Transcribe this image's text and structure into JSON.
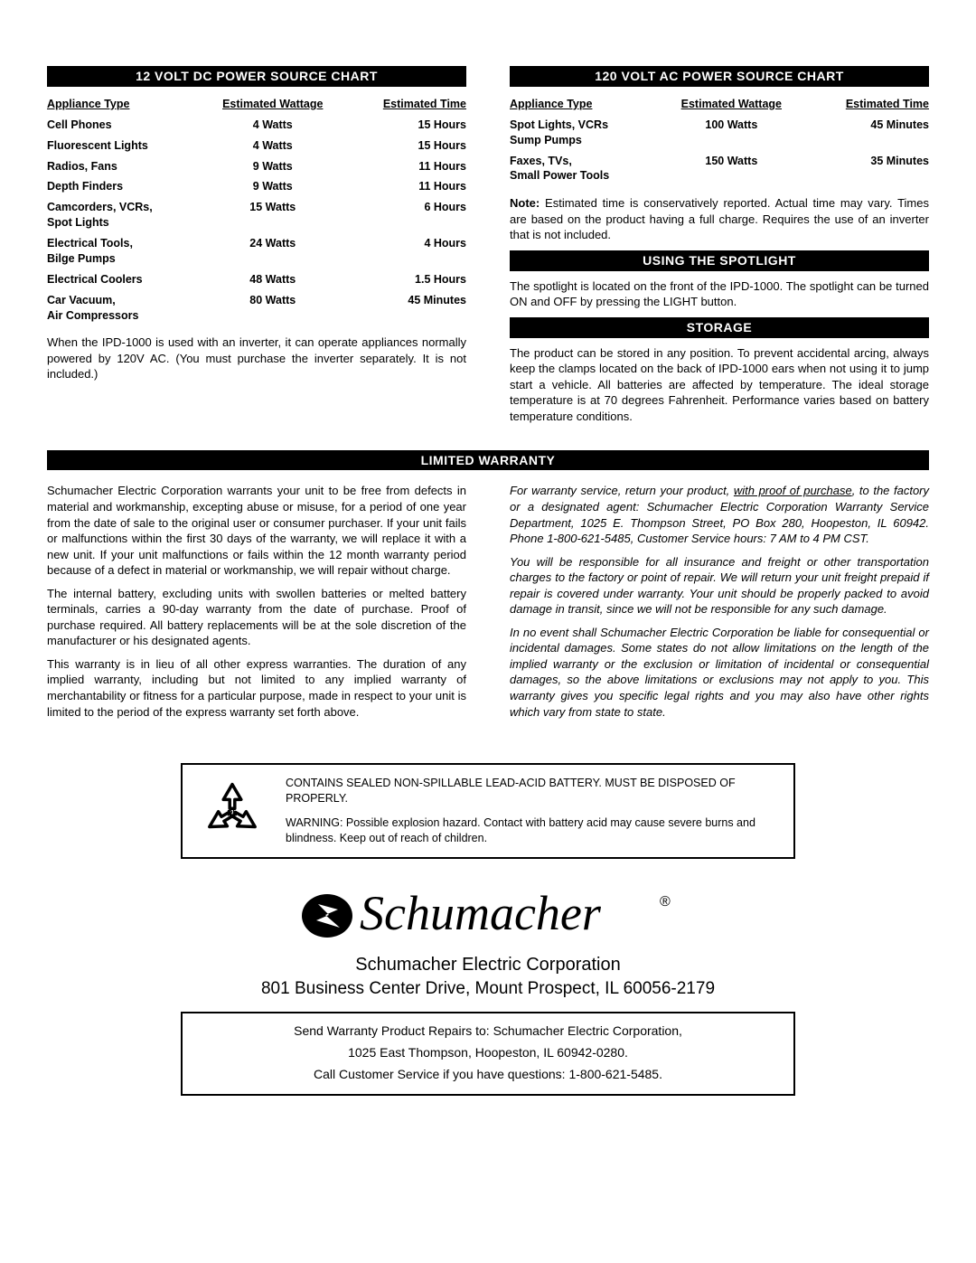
{
  "dc_chart": {
    "title": "12 VOLT DC POWER SOURCE CHART",
    "headers": [
      "Appliance Type",
      "Estimated Wattage",
      "Estimated Time"
    ],
    "rows": [
      [
        "Cell Phones",
        "4 Watts",
        "15 Hours"
      ],
      [
        "Fluorescent Lights",
        "4 Watts",
        "15 Hours"
      ],
      [
        "Radios, Fans",
        "9 Watts",
        "11 Hours"
      ],
      [
        "Depth Finders",
        "9 Watts",
        "11 Hours"
      ],
      [
        "Camcorders, VCRs,<br> Spot Lights",
        "15 Watts",
        "6 Hours"
      ],
      [
        "Electrical Tools,<br> Bilge Pumps",
        "24 Watts",
        "4 Hours"
      ],
      [
        "Electrical Coolers",
        "48 Watts",
        "1.5 Hours"
      ],
      [
        "Car Vacuum,<br> Air Compressors",
        "80 Watts",
        "45 Minutes"
      ]
    ],
    "note": "When the IPD-1000 is used with an inverter, it can operate appliances normally powered by 120V AC. (You must purchase the inverter separately. It is not included.)"
  },
  "ac_chart": {
    "title": "120 VOLT AC POWER SOURCE CHART",
    "headers": [
      "Appliance Type",
      "Estimated Wattage",
      "Estimated Time"
    ],
    "rows": [
      [
        "Spot Lights, VCRs<br>Sump Pumps",
        "100 Watts",
        "45 Minutes"
      ],
      [
        "Faxes, TVs,<br>Small Power Tools",
        "150 Watts",
        "35 Minutes"
      ]
    ],
    "note": "Note: Estimated time is conservatively reported. Actual time may vary. Times are based on the product having a full charge. Requires the use of an inverter that is not included."
  },
  "spotlight": {
    "title": "USING THE SPOTLIGHT",
    "text": "The spotlight is located on the front of the IPD-1000. The spotlight can be turned ON and OFF by pressing the LIGHT button."
  },
  "storage": {
    "title": "STORAGE",
    "text": "The product can be stored in any position. To prevent accidental arcing, always keep the clamps located on the back of IPD-1000 ears when not using it to jump start a vehicle. All batteries are affected by temperature. The ideal storage temperature is at 70 degrees Fahrenheit. Performance varies based on battery temperature conditions."
  },
  "warranty": {
    "title": "LIMITED WARRANTY",
    "left": [
      "Schumacher Electric Corporation warrants your unit to be free from defects in material and workmanship, excepting abuse or misuse, for a period of one year from the date of sale to the original user or consumer purchaser. If your unit fails or malfunctions within the first 30 days of the warranty, we will replace it with a new unit. If your unit malfunctions or fails within the 12 month warranty period because of a defect in material or workmanship, we will repair without charge.",
      "The internal battery, excluding units with swollen batteries or melted battery terminals, carries a 90-day warranty from the date of purchase. Proof of purchase required. All battery replacements will be at the sole discretion of the manufacturer or his designated agents.",
      "This warranty is in lieu of all other express warranties. The duration of any implied warranty, including but not limited to any implied warranty of merchantability or fitness for a particular purpose, made in respect to your unit is limited to the period of the express warranty set forth above."
    ],
    "right_first_html": "For warranty service, return your product, <u>with proof of purchase</u>, to the factory or a designated agent: Schumacher Electric Corporation Warranty Service Department, 1025 E. Thompson Street, PO Box 280, Hoopeston, IL 60942. Phone 1-800-621-5485, Customer Service hours: 7 AM to 4 PM CST.",
    "right": [
      "You will be responsible for all insurance and freight or other transportation charges to the factory or point of repair. We will return your unit freight prepaid if repair is covered under warranty. Your unit should be properly packed to avoid damage in transit, since we will not be responsible for any such damage.",
      "In no event shall Schumacher Electric Corporation be liable for consequential or incidental damages. Some states do not allow limitations on the length of the implied warranty or the exclusion or limitation of incidental or consequential damages, so the above limitations or exclusions may not apply to you. This warranty gives you specific legal rights and you may also have other rights which vary from state to state."
    ]
  },
  "recycle": {
    "line1": "CONTAINS SEALED NON-SPILLABLE LEAD-ACID BATTERY. MUST BE DISPOSED OF PROPERLY.",
    "line2": "WARNING:  Possible explosion hazard. Contact with battery acid may cause severe burns and blindness. Keep out of reach of children."
  },
  "company": {
    "name": "Schumacher Electric Corporation",
    "address": "801 Business Center Drive, Mount Prospect, IL  60056-2179"
  },
  "repair_box": {
    "line1": "Send Warranty Product Repairs to:  Schumacher Electric Corporation,",
    "line2": "1025 East Thompson, Hoopeston, IL 60942-0280.",
    "line3": "Call Customer Service if you have questions: 1-800-621-5485."
  }
}
